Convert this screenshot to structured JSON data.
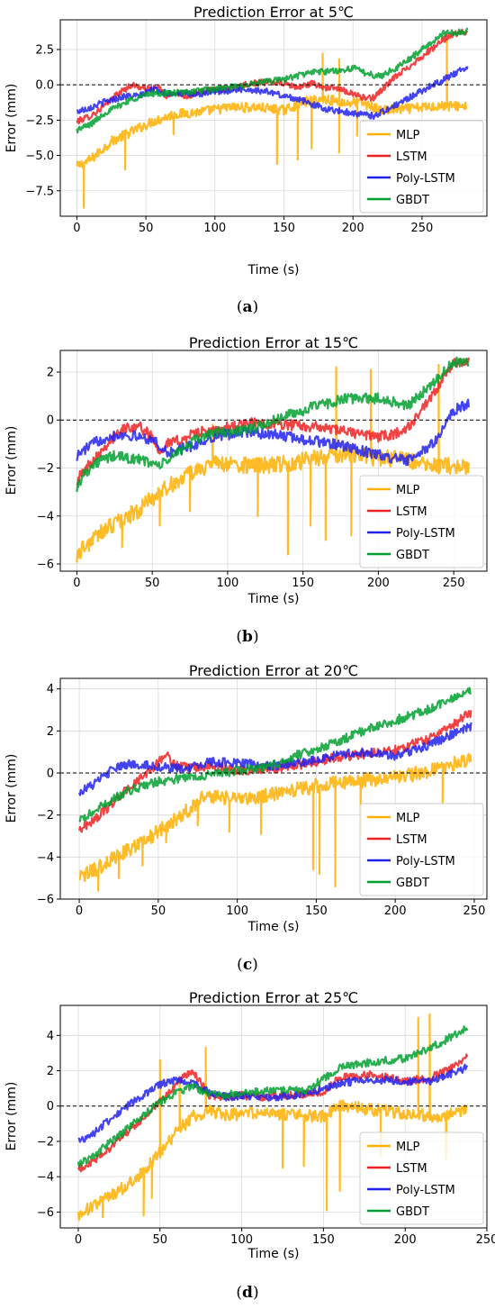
{
  "figure": {
    "panels": [
      {
        "caption_letter": "a"
      },
      {
        "caption_letter": "b"
      },
      {
        "caption_letter": "c"
      },
      {
        "caption_letter": "d"
      }
    ]
  },
  "chart_data": [
    {
      "type": "line",
      "title": "Prediction Error at 5℃",
      "xlabel": "Time (s)",
      "ylabel": "Error (mm)",
      "xlim": [
        -12,
        297
      ],
      "ylim": [
        -9.3,
        4.6
      ],
      "xticks": [
        0,
        50,
        100,
        150,
        200,
        250
      ],
      "yticks": [
        -7.5,
        -5.0,
        -2.5,
        0.0,
        2.5
      ],
      "ytick_labels": [
        "−7.5",
        "−5.0",
        "−2.5",
        "0.0",
        "2.5"
      ],
      "grid": true,
      "zero_line": {
        "y": 0,
        "style": "dashed"
      },
      "legend_position": "lower right",
      "series": [
        {
          "name": "MLP",
          "color": "#FFB000",
          "x": [
            0,
            10,
            25,
            40,
            55,
            70,
            90,
            110,
            130,
            150,
            165,
            180,
            195,
            205,
            220,
            240,
            260,
            282
          ],
          "y": [
            -5.8,
            -5.3,
            -4.0,
            -3.3,
            -2.6,
            -2.1,
            -1.9,
            -1.6,
            -1.6,
            -1.8,
            -1.2,
            -1.0,
            -1.3,
            -1.2,
            -1.8,
            -1.7,
            -1.5,
            -1.5
          ],
          "spikes": [
            [
              5,
              -8.7
            ],
            [
              35,
              -6.0
            ],
            [
              70,
              -3.5
            ],
            [
              145,
              -5.6
            ],
            [
              160,
              -5.3
            ],
            [
              170,
              -4.5
            ],
            [
              190,
              -4.8
            ],
            [
              203,
              -3.6
            ],
            [
              178,
              2.2
            ],
            [
              190,
              1.8
            ],
            [
              268,
              3.2
            ]
          ]
        },
        {
          "name": "LSTM",
          "color": "#EE2222",
          "x": [
            0,
            10,
            20,
            30,
            40,
            50,
            60,
            65,
            70,
            80,
            90,
            100,
            110,
            125,
            140,
            150,
            160,
            170,
            180,
            190,
            200,
            210,
            215,
            230,
            250,
            270,
            283
          ],
          "y": [
            -2.6,
            -2.2,
            -1.5,
            -0.6,
            0.0,
            -0.3,
            -0.2,
            -0.9,
            -0.5,
            -0.8,
            -0.5,
            -0.3,
            -0.3,
            0.1,
            0.2,
            0.1,
            -0.2,
            0.1,
            -0.2,
            -0.3,
            -0.6,
            -1.0,
            -0.9,
            0.5,
            2.0,
            3.5,
            3.8
          ]
        },
        {
          "name": "Poly-LSTM",
          "color": "#2222EE",
          "x": [
            0,
            10,
            20,
            35,
            45,
            55,
            65,
            75,
            85,
            100,
            120,
            140,
            150,
            160,
            180,
            200,
            215,
            230,
            250,
            270,
            283
          ],
          "y": [
            -1.9,
            -1.6,
            -1.2,
            -0.8,
            -0.8,
            -0.3,
            -0.6,
            -0.6,
            -0.7,
            -0.5,
            -0.3,
            -0.5,
            -0.8,
            -1.0,
            -1.7,
            -2.0,
            -2.2,
            -1.5,
            -0.4,
            0.6,
            1.3
          ]
        },
        {
          "name": "GBDT",
          "color": "#00A030",
          "x": [
            0,
            10,
            20,
            30,
            40,
            55,
            70,
            90,
            110,
            130,
            150,
            170,
            190,
            200,
            210,
            220,
            235,
            250,
            265,
            283
          ],
          "y": [
            -3.2,
            -2.8,
            -2.0,
            -1.5,
            -1.0,
            -0.6,
            -0.6,
            -0.4,
            -0.2,
            0.1,
            0.4,
            0.9,
            1.0,
            1.2,
            0.8,
            0.6,
            1.4,
            2.5,
            3.6,
            3.8
          ]
        }
      ]
    },
    {
      "type": "line",
      "title": "Prediction Error at 15℃",
      "xlabel": "Time (s)",
      "ylabel": "Error (mm)",
      "xlim": [
        -11,
        272
      ],
      "ylim": [
        -6.3,
        2.9
      ],
      "xticks": [
        0,
        50,
        100,
        150,
        200,
        250
      ],
      "yticks": [
        -6,
        -4,
        -2,
        0,
        2
      ],
      "ytick_labels": [
        "−6",
        "−4",
        "−2",
        "0",
        "2"
      ],
      "grid": true,
      "zero_line": {
        "y": 0,
        "style": "dashed"
      },
      "legend_position": "lower right",
      "series": [
        {
          "name": "MLP",
          "color": "#FFB000",
          "x": [
            0,
            10,
            25,
            40,
            55,
            70,
            90,
            110,
            130,
            150,
            165,
            180,
            200,
            215,
            230,
            245,
            260
          ],
          "y": [
            -5.6,
            -5.0,
            -4.3,
            -3.8,
            -3.0,
            -2.4,
            -1.8,
            -1.9,
            -1.9,
            -1.7,
            -1.5,
            -1.4,
            -1.6,
            -1.6,
            -1.9,
            -1.9,
            -2.0
          ],
          "spikes": [
            [
              30,
              -5.3
            ],
            [
              55,
              -4.4
            ],
            [
              75,
              -3.8
            ],
            [
              90,
              -0.2
            ],
            [
              120,
              -4.0
            ],
            [
              140,
              -5.6
            ],
            [
              155,
              -4.4
            ],
            [
              165,
              -5.0
            ],
            [
              172,
              2.2
            ],
            [
              182,
              -4.8
            ],
            [
              195,
              2.1
            ],
            [
              240,
              2.3
            ]
          ]
        },
        {
          "name": "LSTM",
          "color": "#EE2222",
          "x": [
            0,
            10,
            20,
            30,
            40,
            50,
            55,
            60,
            70,
            80,
            90,
            100,
            120,
            140,
            160,
            180,
            200,
            210,
            220,
            235,
            250,
            260
          ],
          "y": [
            -2.5,
            -1.7,
            -1.0,
            -0.4,
            -0.2,
            -0.7,
            -1.3,
            -1.0,
            -0.8,
            -0.5,
            -0.5,
            -0.3,
            -0.1,
            -0.2,
            -0.3,
            -0.5,
            -0.7,
            -0.6,
            -0.3,
            0.9,
            2.4,
            2.4
          ]
        },
        {
          "name": "Poly-LSTM",
          "color": "#2222EE",
          "x": [
            0,
            10,
            20,
            30,
            40,
            50,
            60,
            70,
            80,
            90,
            110,
            130,
            150,
            170,
            190,
            210,
            220,
            230,
            240,
            250,
            260
          ],
          "y": [
            -1.5,
            -1.0,
            -0.7,
            -0.6,
            -0.7,
            -0.8,
            -1.4,
            -1.2,
            -1.0,
            -0.7,
            -0.5,
            -0.6,
            -0.8,
            -1.0,
            -1.3,
            -1.6,
            -1.7,
            -1.3,
            -0.7,
            0.4,
            0.7
          ]
        },
        {
          "name": "GBDT",
          "color": "#00A030",
          "x": [
            0,
            5,
            15,
            25,
            35,
            45,
            55,
            60,
            70,
            80,
            90,
            100,
            120,
            140,
            160,
            180,
            200,
            220,
            235,
            250,
            260
          ],
          "y": [
            -2.8,
            -2.2,
            -1.7,
            -1.5,
            -1.6,
            -1.7,
            -1.9,
            -1.7,
            -1.2,
            -0.8,
            -0.5,
            -0.5,
            -0.3,
            0.2,
            0.6,
            0.9,
            0.9,
            0.6,
            1.5,
            2.4,
            2.4
          ]
        }
      ]
    },
    {
      "type": "line",
      "title": "Prediction Error at 20℃",
      "xlabel": "Time (s)",
      "ylabel": "Error (mm)",
      "xlim": [
        -12,
        258
      ],
      "ylim": [
        -6.0,
        4.5
      ],
      "xticks": [
        0,
        50,
        100,
        150,
        200,
        250
      ],
      "yticks": [
        -6,
        -4,
        -2,
        0,
        2,
        4
      ],
      "ytick_labels": [
        "−6",
        "−4",
        "−2",
        "0",
        "2",
        "4"
      ],
      "grid": true,
      "zero_line": {
        "y": 0,
        "style": "dashed"
      },
      "legend_position": "lower right",
      "series": [
        {
          "name": "MLP",
          "color": "#FFB000",
          "x": [
            0,
            10,
            25,
            40,
            55,
            70,
            80,
            90,
            110,
            130,
            150,
            170,
            190,
            210,
            230,
            248
          ],
          "y": [
            -5.0,
            -4.6,
            -3.9,
            -3.3,
            -2.5,
            -1.7,
            -1.0,
            -1.2,
            -1.2,
            -0.9,
            -0.6,
            -0.4,
            -0.3,
            -0.1,
            0.3,
            0.6
          ],
          "spikes": [
            [
              12,
              -5.6
            ],
            [
              25,
              -5.0
            ],
            [
              40,
              -4.4
            ],
            [
              55,
              -3.3
            ],
            [
              75,
              -2.5
            ],
            [
              95,
              -2.8
            ],
            [
              115,
              -2.9
            ],
            [
              148,
              -4.6
            ],
            [
              152,
              -4.8
            ],
            [
              162,
              -5.4
            ],
            [
              178,
              -3.0
            ],
            [
              230,
              -1.4
            ]
          ]
        },
        {
          "name": "LSTM",
          "color": "#EE2222",
          "x": [
            0,
            10,
            20,
            30,
            40,
            50,
            55,
            60,
            70,
            80,
            90,
            100,
            120,
            140,
            160,
            180,
            200,
            220,
            235,
            248
          ],
          "y": [
            -2.7,
            -2.2,
            -1.5,
            -0.8,
            -0.2,
            0.5,
            0.9,
            0.4,
            0.2,
            0.3,
            0.3,
            0.1,
            0.2,
            0.4,
            0.7,
            0.9,
            1.1,
            1.6,
            2.2,
            2.9
          ]
        },
        {
          "name": "Poly-LSTM",
          "color": "#2222EE",
          "x": [
            0,
            10,
            20,
            30,
            40,
            50,
            60,
            70,
            80,
            90,
            100,
            120,
            140,
            160,
            180,
            200,
            220,
            235,
            248
          ],
          "y": [
            -0.9,
            -0.5,
            0.1,
            0.4,
            0.4,
            0.3,
            0.2,
            0.2,
            0.5,
            0.5,
            0.5,
            0.3,
            0.5,
            0.8,
            1.0,
            0.8,
            1.3,
            1.8,
            2.2
          ]
        },
        {
          "name": "GBDT",
          "color": "#00A030",
          "x": [
            0,
            10,
            20,
            30,
            40,
            50,
            60,
            70,
            80,
            90,
            100,
            120,
            140,
            160,
            180,
            200,
            220,
            235,
            248
          ],
          "y": [
            -2.3,
            -1.8,
            -1.3,
            -0.9,
            -0.6,
            -0.4,
            -0.3,
            -0.2,
            -0.1,
            0.0,
            0.1,
            0.3,
            0.9,
            1.4,
            2.0,
            2.5,
            3.0,
            3.5,
            3.9
          ]
        }
      ]
    },
    {
      "type": "line",
      "title": "Prediction Error at 25℃",
      "xlabel": "Time (s)",
      "ylabel": "Error (mm)",
      "xlim": [
        -11,
        250
      ],
      "ylim": [
        -6.9,
        5.7
      ],
      "xticks": [
        0,
        50,
        100,
        150,
        200,
        250
      ],
      "yticks": [
        -6,
        -4,
        -2,
        0,
        2,
        4
      ],
      "ytick_labels": [
        "−6",
        "−4",
        "−2",
        "0",
        "2",
        "4"
      ],
      "grid": true,
      "zero_line": {
        "y": 0,
        "style": "dashed"
      },
      "legend_position": "lower right",
      "series": [
        {
          "name": "MLP",
          "color": "#FFB000",
          "x": [
            0,
            10,
            25,
            40,
            50,
            60,
            70,
            80,
            90,
            110,
            130,
            150,
            160,
            180,
            200,
            220,
            238
          ],
          "y": [
            -6.2,
            -5.6,
            -4.8,
            -3.7,
            -2.6,
            -1.5,
            -0.6,
            -0.3,
            -0.5,
            -0.4,
            -0.5,
            -0.6,
            0.0,
            -0.2,
            -0.4,
            -0.6,
            -0.2
          ],
          "spikes": [
            [
              15,
              -6.3
            ],
            [
              40,
              -6.2
            ],
            [
              45,
              -5.2
            ],
            [
              50,
              2.6
            ],
            [
              62,
              1.5
            ],
            [
              78,
              3.3
            ],
            [
              125,
              -3.5
            ],
            [
              138,
              -3.4
            ],
            [
              152,
              -5.9
            ],
            [
              160,
              -4.8
            ],
            [
              185,
              -2.8
            ],
            [
              208,
              5.0
            ],
            [
              215,
              5.2
            ],
            [
              225,
              -3.0
            ]
          ]
        },
        {
          "name": "LSTM",
          "color": "#EE2222",
          "x": [
            0,
            10,
            20,
            30,
            40,
            50,
            60,
            65,
            70,
            75,
            80,
            90,
            100,
            110,
            130,
            150,
            160,
            180,
            200,
            215,
            230,
            238
          ],
          "y": [
            -3.6,
            -3.1,
            -2.3,
            -1.5,
            -0.7,
            0.2,
            1.2,
            1.8,
            1.9,
            1.3,
            0.6,
            0.5,
            0.6,
            0.5,
            0.6,
            0.8,
            1.6,
            1.8,
            1.4,
            1.6,
            2.2,
            2.9
          ]
        },
        {
          "name": "Poly-LSTM",
          "color": "#2222EE",
          "x": [
            0,
            10,
            20,
            30,
            40,
            50,
            60,
            70,
            80,
            90,
            100,
            120,
            140,
            160,
            180,
            200,
            215,
            230,
            238
          ],
          "y": [
            -2.0,
            -1.5,
            -0.7,
            0.0,
            0.6,
            1.2,
            1.5,
            1.3,
            0.8,
            0.5,
            0.6,
            0.5,
            0.7,
            1.3,
            1.5,
            1.4,
            1.4,
            1.9,
            2.2
          ]
        },
        {
          "name": "GBDT",
          "color": "#00A030",
          "x": [
            0,
            10,
            20,
            30,
            40,
            50,
            60,
            70,
            80,
            90,
            100,
            120,
            140,
            160,
            180,
            200,
            220,
            238
          ],
          "y": [
            -3.3,
            -2.8,
            -2.0,
            -1.3,
            -0.5,
            0.2,
            0.8,
            1.1,
            0.7,
            0.6,
            0.8,
            0.9,
            0.9,
            2.2,
            2.5,
            2.7,
            3.5,
            4.4
          ]
        }
      ]
    }
  ]
}
